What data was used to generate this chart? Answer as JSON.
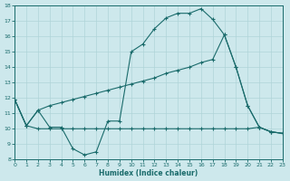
{
  "xlabel": "Humidex (Indice chaleur)",
  "xlim": [
    0,
    23
  ],
  "ylim": [
    8,
    18
  ],
  "xticks": [
    0,
    1,
    2,
    3,
    4,
    5,
    6,
    7,
    8,
    9,
    10,
    11,
    12,
    13,
    14,
    15,
    16,
    17,
    18,
    19,
    20,
    21,
    22,
    23
  ],
  "yticks": [
    8,
    9,
    10,
    11,
    12,
    13,
    14,
    15,
    16,
    17,
    18
  ],
  "bg_color": "#cde8ec",
  "line_color": "#1a6b6b",
  "grid_color": "#afd4d8",
  "line1_x": [
    0,
    1,
    2,
    3,
    4,
    5,
    6,
    7,
    8,
    9,
    10,
    11,
    12,
    13,
    14,
    15,
    16,
    17,
    18,
    19,
    20,
    21,
    22,
    23
  ],
  "line1_y": [
    11.9,
    10.2,
    11.2,
    10.1,
    10.1,
    8.7,
    8.3,
    8.5,
    10.5,
    10.5,
    15.0,
    15.5,
    16.5,
    17.2,
    17.5,
    17.5,
    17.8,
    17.1,
    16.1,
    14.0,
    11.5,
    10.1,
    9.8,
    9.7
  ],
  "line2_x": [
    0,
    1,
    2,
    3,
    4,
    5,
    6,
    7,
    8,
    9,
    10,
    11,
    12,
    13,
    14,
    15,
    16,
    17,
    18,
    19,
    20,
    21,
    22,
    23
  ],
  "line2_y": [
    11.9,
    10.2,
    11.2,
    11.5,
    11.7,
    11.9,
    12.1,
    12.3,
    12.5,
    12.7,
    12.9,
    13.1,
    13.3,
    13.6,
    13.8,
    14.0,
    14.3,
    14.5,
    16.1,
    14.0,
    11.5,
    10.1,
    9.8,
    9.7
  ],
  "line3_x": [
    0,
    1,
    2,
    3,
    4,
    5,
    6,
    7,
    8,
    9,
    10,
    11,
    12,
    13,
    14,
    15,
    16,
    17,
    18,
    19,
    20,
    21,
    22,
    23
  ],
  "line3_y": [
    11.9,
    10.2,
    10.0,
    10.0,
    10.0,
    10.0,
    10.0,
    10.0,
    10.0,
    10.0,
    10.0,
    10.0,
    10.0,
    10.0,
    10.0,
    10.0,
    10.0,
    10.0,
    10.0,
    10.0,
    10.0,
    10.1,
    9.8,
    9.7
  ]
}
